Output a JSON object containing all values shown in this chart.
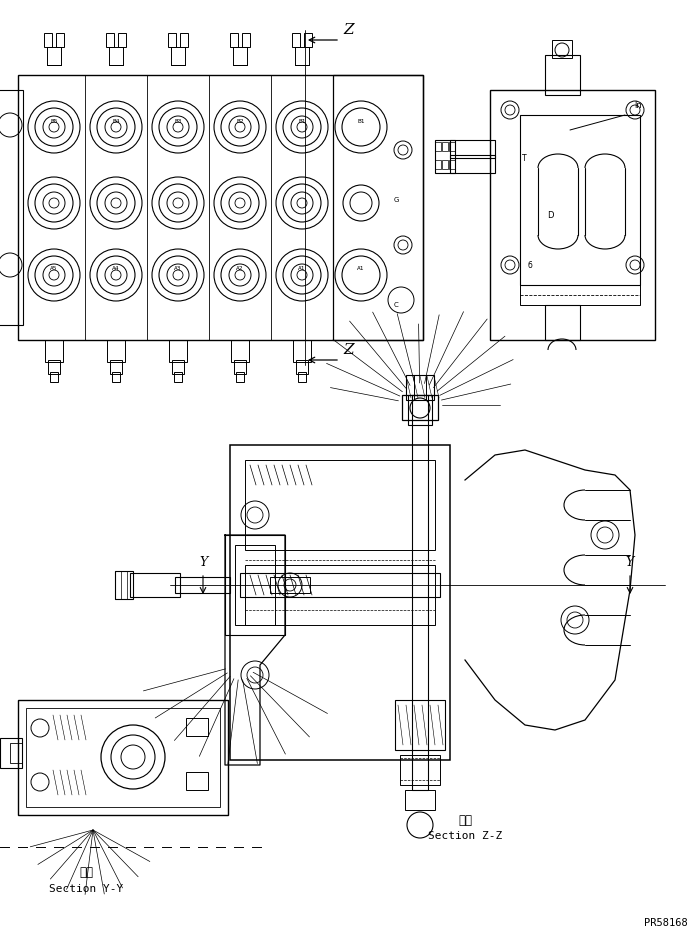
{
  "bg_color": "#ffffff",
  "line_color": "#000000",
  "fig_width": 6.97,
  "fig_height": 9.4,
  "dpi": 100,
  "section_zz_label_jp": "断面",
  "section_zz_label_en": "Section Z-Z",
  "section_yy_label_jp": "断面",
  "section_yy_label_en": "Section Y-Y",
  "part_number": "PR58168"
}
